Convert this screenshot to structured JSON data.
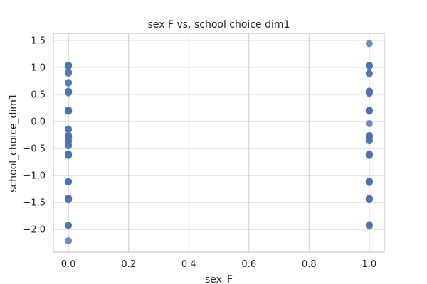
{
  "chart_data": {
    "type": "scatter",
    "title": "sex F vs. school choice dim1",
    "xlabel": "sex_F",
    "ylabel": "school_choice_dim1",
    "xlim": [
      -0.05,
      1.05
    ],
    "ylim": [
      -2.42,
      1.63
    ],
    "x_ticks": [
      0.0,
      0.2,
      0.4,
      0.6,
      0.8,
      1.0
    ],
    "x_tick_labels": [
      "0.0",
      "0.2",
      "0.4",
      "0.6",
      "0.8",
      "1.0"
    ],
    "y_ticks": [
      -2.0,
      -1.5,
      -1.0,
      -0.5,
      0.0,
      0.5,
      1.0,
      1.5
    ],
    "y_tick_labels": [
      "−2.0",
      "−1.5",
      "−1.0",
      "−0.5",
      "0.0",
      "0.5",
      "1.0",
      "1.5"
    ],
    "grid": true,
    "marker_color": "#4c72b0",
    "series": [
      {
        "x": [
          0,
          0,
          0,
          0,
          0,
          0,
          0,
          0,
          0,
          0,
          0,
          0,
          0,
          0,
          0,
          0,
          0,
          0,
          0,
          0,
          0,
          0,
          0,
          0,
          0,
          0,
          0,
          0,
          0,
          0,
          0,
          0,
          0,
          0,
          0,
          0,
          0,
          0,
          0,
          0,
          0,
          0,
          0,
          0,
          0,
          0,
          0,
          0,
          0,
          0,
          0,
          0,
          1,
          1,
          1,
          1,
          1,
          1,
          1,
          1,
          1,
          1,
          1,
          1,
          1,
          1,
          1,
          1,
          1,
          1,
          1,
          1,
          1,
          1,
          1,
          1,
          1,
          1,
          1,
          1,
          1,
          1,
          1,
          1,
          1,
          1,
          1,
          1,
          1,
          1,
          1,
          1,
          1,
          1,
          1,
          1,
          1,
          1,
          1,
          1,
          1,
          1,
          1,
          1
        ],
        "y": [
          1.04,
          1.03,
          1.02,
          0.92,
          0.89,
          0.72,
          0.71,
          0.56,
          0.54,
          0.53,
          0.21,
          0.2,
          0.19,
          -0.14,
          -0.15,
          -0.26,
          -0.28,
          -0.29,
          -0.3,
          -0.36,
          -0.37,
          -0.44,
          -0.45,
          -0.6,
          -0.61,
          -0.62,
          -0.63,
          -1.11,
          -1.12,
          -1.42,
          -1.43,
          -1.44,
          -1.45,
          -1.92,
          -1.93,
          -2.21,
          1.04,
          0.21,
          0.2,
          -0.28,
          -0.61,
          -0.62,
          -1.12,
          -1.43,
          -1.44,
          -0.3,
          -0.29,
          0.55,
          -0.62,
          0.19,
          1.03,
          0.21,
          1.44,
          1.04,
          1.03,
          1.02,
          0.89,
          0.88,
          0.56,
          0.55,
          0.53,
          0.52,
          0.21,
          0.2,
          0.19,
          -0.04,
          -0.26,
          -0.27,
          -0.28,
          -0.29,
          -0.3,
          -0.35,
          -0.36,
          -0.6,
          -0.61,
          -0.62,
          -0.63,
          -1.1,
          -1.11,
          -1.12,
          -1.13,
          -1.42,
          -1.43,
          -1.44,
          -1.45,
          -1.91,
          -1.92,
          -1.94,
          1.04,
          0.21,
          0.2,
          -0.28,
          -0.61,
          -0.62,
          -1.12,
          -1.43,
          -1.44,
          -0.3,
          0.55,
          -0.62,
          0.19,
          1.03,
          0.21,
          -1.11
        ]
      }
    ]
  }
}
